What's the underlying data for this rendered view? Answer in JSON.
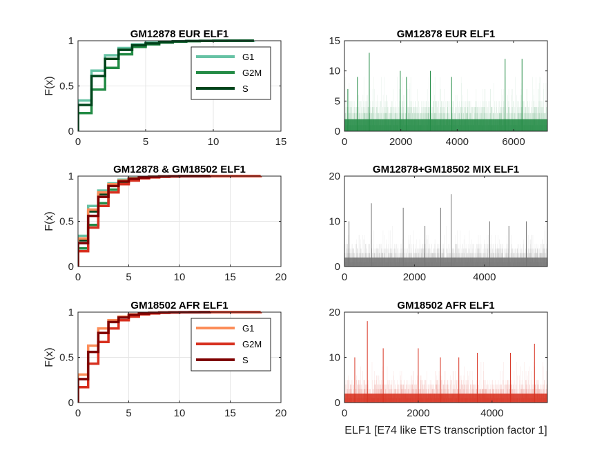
{
  "chart_data": [
    {
      "type": "line",
      "subtype": "ecdf",
      "title": "GM12878 EUR ELF1",
      "ylabel": "F(x)",
      "xlim": [
        0,
        15
      ],
      "ylim": [
        0,
        1
      ],
      "xticks": [
        "0",
        "5",
        "10",
        "15"
      ],
      "yticks": [
        "0",
        "0.5",
        "1"
      ],
      "grid": true,
      "legend": "top-right",
      "series": [
        {
          "name": "G1",
          "color": "#66c2a4",
          "x": [
            0,
            1,
            2,
            3,
            4,
            5,
            6,
            7,
            8,
            9,
            10,
            11,
            12,
            13
          ],
          "values": [
            0.34,
            0.67,
            0.84,
            0.92,
            0.96,
            0.98,
            0.99,
            0.995,
            0.997,
            0.998,
            0.999,
            0.9995,
            0.9999,
            1
          ]
        },
        {
          "name": "G2M",
          "color": "#238b45",
          "x": [
            0,
            1,
            2,
            3,
            4,
            5,
            6,
            7,
            8,
            9,
            10,
            11,
            12,
            13
          ],
          "values": [
            0.2,
            0.46,
            0.7,
            0.85,
            0.93,
            0.96,
            0.98,
            0.99,
            0.995,
            0.998,
            0.999,
            1,
            1,
            1
          ]
        },
        {
          "name": "S",
          "color": "#00441b",
          "x": [
            0,
            1,
            2,
            3,
            4,
            5,
            6,
            7,
            8,
            9,
            10,
            11,
            12,
            13
          ],
          "values": [
            0.29,
            0.61,
            0.8,
            0.9,
            0.95,
            0.97,
            0.985,
            0.993,
            0.997,
            0.999,
            1,
            1,
            1,
            1
          ]
        }
      ]
    },
    {
      "type": "bar",
      "title": "GM12878 EUR ELF1",
      "xlim": [
        0,
        7200
      ],
      "ylim": [
        0,
        15
      ],
      "xticks": [
        "0",
        "2000",
        "4000",
        "6000"
      ],
      "yticks": [
        "0",
        "5",
        "10",
        "15"
      ],
      "grid": false,
      "color": "#238b45",
      "n": 7200,
      "spikes": [
        [
          880,
          13
        ],
        [
          5700,
          12
        ],
        [
          6300,
          12
        ],
        [
          3050,
          10
        ],
        [
          1980,
          10
        ],
        [
          3800,
          9
        ],
        [
          2200,
          9
        ],
        [
          120,
          7
        ],
        [
          460,
          9
        ]
      ]
    },
    {
      "type": "line",
      "subtype": "ecdf",
      "title": "GM12878 & GM18502 ELF1",
      "ylabel": "F(x)",
      "xlim": [
        0,
        20
      ],
      "ylim": [
        0,
        1
      ],
      "xticks": [
        "0",
        "5",
        "10",
        "15",
        "20"
      ],
      "yticks": [
        "0",
        "0.5",
        "1"
      ],
      "grid": true,
      "series": [
        {
          "name": "G1",
          "color": "#66c2a4",
          "x": [
            0,
            1,
            2,
            3,
            4,
            5,
            6,
            7,
            8,
            9,
            10,
            11,
            12,
            13
          ],
          "values": [
            0.34,
            0.67,
            0.84,
            0.92,
            0.96,
            0.98,
            0.99,
            0.995,
            0.997,
            0.998,
            0.999,
            0.9995,
            0.9999,
            1
          ]
        },
        {
          "name": "G2M",
          "color": "#238b45",
          "x": [
            0,
            1,
            2,
            3,
            4,
            5,
            6,
            7,
            8,
            9,
            10,
            11,
            12,
            13
          ],
          "values": [
            0.2,
            0.46,
            0.7,
            0.85,
            0.93,
            0.96,
            0.98,
            0.99,
            0.995,
            0.998,
            0.999,
            1,
            1,
            1
          ]
        },
        {
          "name": "S",
          "color": "#00441b",
          "x": [
            0,
            1,
            2,
            3,
            4,
            5,
            6,
            7,
            8,
            9,
            10,
            11,
            12,
            13
          ],
          "values": [
            0.29,
            0.61,
            0.8,
            0.9,
            0.95,
            0.97,
            0.985,
            0.993,
            0.997,
            0.999,
            1,
            1,
            1,
            1
          ]
        },
        {
          "name": "G1",
          "color": "#fc8d59",
          "x": [
            0,
            1,
            2,
            3,
            4,
            5,
            6,
            7,
            8,
            9,
            10,
            11,
            12,
            13,
            14,
            15,
            16,
            17,
            18
          ],
          "values": [
            0.31,
            0.63,
            0.82,
            0.91,
            0.95,
            0.975,
            0.986,
            0.992,
            0.995,
            0.997,
            0.998,
            0.999,
            0.9993,
            0.9996,
            0.9998,
            0.9999,
            0.99995,
            0.99998,
            1
          ]
        },
        {
          "name": "G2M",
          "color": "#d7301f",
          "x": [
            0,
            1,
            2,
            3,
            4,
            5,
            6,
            7,
            8,
            9,
            10,
            11,
            12,
            13,
            14,
            15,
            16,
            17,
            18
          ],
          "values": [
            0.17,
            0.43,
            0.67,
            0.82,
            0.91,
            0.95,
            0.975,
            0.986,
            0.992,
            0.996,
            0.998,
            0.999,
            0.9993,
            0.9996,
            0.9998,
            0.9999,
            0.99995,
            0.99998,
            1
          ]
        },
        {
          "name": "S",
          "color": "#7f0000",
          "x": [
            0,
            1,
            2,
            3,
            4,
            5,
            6,
            7,
            8,
            9,
            10,
            11,
            12,
            13
          ],
          "values": [
            0.26,
            0.56,
            0.77,
            0.89,
            0.94,
            0.97,
            0.984,
            0.992,
            0.996,
            0.998,
            0.999,
            0.9995,
            0.9999,
            1
          ]
        }
      ]
    },
    {
      "type": "bar",
      "title": "GM12878+GM18502 MIX ELF1",
      "xlim": [
        0,
        5800
      ],
      "ylim": [
        0,
        20
      ],
      "xticks": [
        "0",
        "2000",
        "4000"
      ],
      "yticks": [
        "0",
        "10",
        "20"
      ],
      "grid": false,
      "color": "#737373",
      "n": 5800,
      "spikes": [
        [
          3050,
          16
        ],
        [
          770,
          14
        ],
        [
          2750,
          13
        ],
        [
          1680,
          13
        ],
        [
          130,
          10
        ],
        [
          4150,
          10
        ],
        [
          5200,
          10
        ],
        [
          2300,
          9
        ],
        [
          4700,
          9
        ]
      ]
    },
    {
      "type": "line",
      "subtype": "ecdf",
      "title": "GM18502 AFR ELF1",
      "ylabel": "F(x)",
      "xlim": [
        0,
        20
      ],
      "ylim": [
        0,
        1
      ],
      "xticks": [
        "0",
        "5",
        "10",
        "15",
        "20"
      ],
      "yticks": [
        "0",
        "0.5",
        "1"
      ],
      "grid": true,
      "legend": "top-right",
      "series": [
        {
          "name": "G1",
          "color": "#fc8d59",
          "x": [
            0,
            1,
            2,
            3,
            4,
            5,
            6,
            7,
            8,
            9,
            10,
            11,
            12,
            13,
            14,
            15,
            16,
            17,
            18
          ],
          "values": [
            0.31,
            0.63,
            0.82,
            0.91,
            0.95,
            0.975,
            0.986,
            0.992,
            0.995,
            0.997,
            0.998,
            0.999,
            0.9993,
            0.9996,
            0.9998,
            0.9999,
            0.99995,
            0.99998,
            1
          ]
        },
        {
          "name": "G2M",
          "color": "#d7301f",
          "x": [
            0,
            1,
            2,
            3,
            4,
            5,
            6,
            7,
            8,
            9,
            10,
            11,
            12,
            13,
            14,
            15,
            16,
            17,
            18
          ],
          "values": [
            0.17,
            0.43,
            0.67,
            0.82,
            0.91,
            0.95,
            0.975,
            0.986,
            0.992,
            0.996,
            0.998,
            0.999,
            0.9993,
            0.9996,
            0.9998,
            0.9999,
            0.99995,
            0.99998,
            1
          ]
        },
        {
          "name": "S",
          "color": "#7f0000",
          "x": [
            0,
            1,
            2,
            3,
            4,
            5,
            6,
            7,
            8,
            9,
            10,
            11,
            12,
            13
          ],
          "values": [
            0.26,
            0.56,
            0.77,
            0.89,
            0.94,
            0.97,
            0.984,
            0.992,
            0.996,
            0.998,
            0.999,
            0.9995,
            0.9999,
            1
          ]
        }
      ]
    },
    {
      "type": "bar",
      "title": "GM18502 AFR ELF1",
      "xlabel": "ELF1 [E74 like ETS transcription factor 1]",
      "xlim": [
        0,
        5500
      ],
      "ylim": [
        0,
        20
      ],
      "xticks": [
        "0",
        "2000",
        "4000"
      ],
      "yticks": [
        "0",
        "10",
        "20"
      ],
      "grid": false,
      "color": "#d7301f",
      "n": 5500,
      "spikes": [
        [
          620,
          18
        ],
        [
          5150,
          13
        ],
        [
          1050,
          12
        ],
        [
          2000,
          12
        ],
        [
          3600,
          11
        ],
        [
          4500,
          11
        ],
        [
          2600,
          10
        ],
        [
          280,
          10
        ],
        [
          3100,
          10
        ]
      ]
    }
  ]
}
